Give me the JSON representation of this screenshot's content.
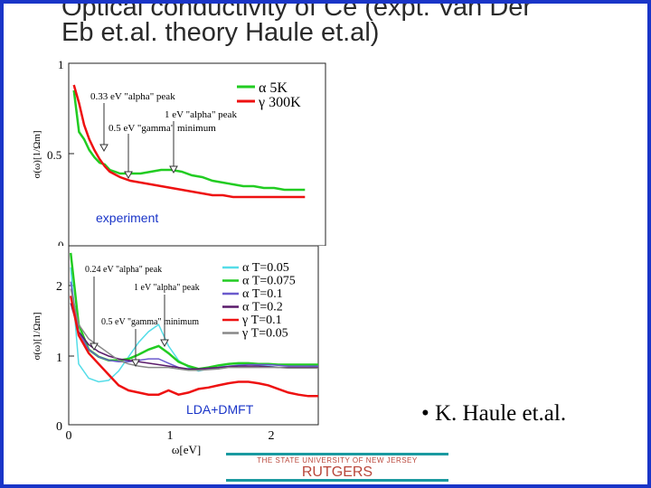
{
  "slide": {
    "title_line1": "Optical conductivity of Ce (expt. Van Der",
    "title_line2": "Eb et.al. theory Haule et.al)",
    "reference": "• K. Haule et.al.",
    "footer_university": "THE STATE UNIVERSITY OF NEW JERSEY",
    "footer_name": "RUTGERS",
    "colors": {
      "frame": "#1a35c8",
      "footer_bar": "#1a9aa0",
      "footer_text": "#b9463a"
    }
  },
  "chart_data": [
    {
      "type": "line",
      "panel_label": "experiment",
      "ylabel": "σ(ω)[1/Ωm]",
      "y_ticks": [
        "1",
        "0.5",
        "0"
      ],
      "xlim": [
        0,
        2.5
      ],
      "ylim": [
        0,
        1
      ],
      "annotations": [
        "0.33 eV \"alpha\" peak",
        "1 eV \"alpha\" peak",
        "0.5 eV \"gamma\" minimum"
      ],
      "legend": {
        "position": "top-right",
        "entries": [
          "α 5K",
          "γ 300K"
        ]
      },
      "series": [
        {
          "name": "α 5K",
          "color": "#22cc22",
          "x": [
            0.05,
            0.1,
            0.15,
            0.2,
            0.25,
            0.3,
            0.35,
            0.4,
            0.5,
            0.6,
            0.7,
            0.8,
            0.9,
            1.0,
            1.1,
            1.2,
            1.3,
            1.4,
            1.5,
            1.6,
            1.7,
            1.8,
            1.9,
            2.0,
            2.1,
            2.2,
            2.3
          ],
          "values": [
            0.85,
            0.62,
            0.58,
            0.52,
            0.48,
            0.45,
            0.44,
            0.41,
            0.39,
            0.39,
            0.39,
            0.4,
            0.41,
            0.41,
            0.4,
            0.38,
            0.37,
            0.35,
            0.34,
            0.33,
            0.32,
            0.32,
            0.31,
            0.31,
            0.3,
            0.3,
            0.3
          ]
        },
        {
          "name": "γ 300K",
          "color": "#ee1111",
          "x": [
            0.05,
            0.1,
            0.15,
            0.2,
            0.25,
            0.3,
            0.35,
            0.4,
            0.5,
            0.6,
            0.7,
            0.8,
            0.9,
            1.0,
            1.1,
            1.2,
            1.3,
            1.4,
            1.5,
            1.6,
            1.7,
            1.8,
            1.9,
            2.0,
            2.1,
            2.2,
            2.3
          ],
          "values": [
            0.88,
            0.78,
            0.66,
            0.58,
            0.52,
            0.47,
            0.43,
            0.4,
            0.37,
            0.35,
            0.34,
            0.33,
            0.32,
            0.31,
            0.3,
            0.29,
            0.28,
            0.27,
            0.27,
            0.26,
            0.26,
            0.26,
            0.26,
            0.26,
            0.26,
            0.26,
            0.26
          ]
        }
      ]
    },
    {
      "type": "line",
      "panel_label": "LDA+DMFT",
      "ylabel": "σ(ω)[1/Ωm]",
      "xlabel": "ω[eV]",
      "y_ticks": [
        "2",
        "1",
        "0"
      ],
      "x_ticks": [
        "0",
        "1",
        "2"
      ],
      "xlim": [
        0,
        2.5
      ],
      "ylim": [
        0,
        2.5
      ],
      "annotations": [
        "0.24 eV \"alpha\" peak",
        "1 eV \"alpha\" peak",
        "0.5 eV \"gamma\" minimum"
      ],
      "legend": {
        "position": "top-right",
        "entries": [
          "α T=0.05",
          "α T=0.075",
          "α T=0.1",
          "α T=0.2",
          "γ T=0.1",
          "γ T=0.05"
        ]
      },
      "series": [
        {
          "name": "α T=0.05",
          "color": "#55dde8",
          "x": [
            0.02,
            0.1,
            0.2,
            0.3,
            0.4,
            0.5,
            0.6,
            0.7,
            0.8,
            0.9,
            1.0,
            1.1,
            1.2,
            1.3,
            1.4,
            1.5,
            1.6,
            1.7,
            1.8,
            1.9,
            2.0,
            2.1,
            2.2,
            2.3,
            2.4,
            2.5
          ],
          "values": [
            2.2,
            0.85,
            0.65,
            0.6,
            0.62,
            0.75,
            0.95,
            1.15,
            1.3,
            1.4,
            1.1,
            0.9,
            0.8,
            0.75,
            0.78,
            0.8,
            0.85,
            0.85,
            0.85,
            0.83,
            0.82,
            0.8,
            0.8,
            0.8,
            0.8,
            0.82
          ]
        },
        {
          "name": "α T=0.075",
          "color": "#22cc22",
          "x": [
            0.02,
            0.1,
            0.2,
            0.3,
            0.4,
            0.5,
            0.6,
            0.7,
            0.8,
            0.9,
            1.0,
            1.1,
            1.2,
            1.3,
            1.4,
            1.5,
            1.6,
            1.7,
            1.8,
            1.9,
            2.0,
            2.1,
            2.2,
            2.3,
            2.4,
            2.5
          ],
          "values": [
            2.4,
            1.4,
            1.05,
            0.95,
            0.9,
            0.9,
            0.92,
            0.98,
            1.05,
            1.1,
            1.0,
            0.88,
            0.82,
            0.78,
            0.8,
            0.83,
            0.85,
            0.86,
            0.86,
            0.85,
            0.85,
            0.84,
            0.84,
            0.84,
            0.84,
            0.84
          ]
        },
        {
          "name": "α T=0.1",
          "color": "#6a5acd",
          "x": [
            0.02,
            0.1,
            0.2,
            0.3,
            0.4,
            0.5,
            0.6,
            0.7,
            0.8,
            0.9,
            1.0,
            1.1,
            1.2,
            1.3,
            1.4,
            1.5,
            1.6,
            1.7,
            1.8,
            1.9,
            2.0,
            2.1,
            2.2,
            2.3,
            2.4,
            2.5
          ],
          "values": [
            2.0,
            1.3,
            1.05,
            0.95,
            0.9,
            0.88,
            0.88,
            0.9,
            0.92,
            0.92,
            0.86,
            0.8,
            0.77,
            0.76,
            0.78,
            0.8,
            0.82,
            0.83,
            0.84,
            0.84,
            0.84,
            0.83,
            0.82,
            0.82,
            0.82,
            0.82
          ]
        },
        {
          "name": "α T=0.2",
          "color": "#5a1a6a",
          "x": [
            0.02,
            0.1,
            0.2,
            0.3,
            0.4,
            0.5,
            0.6,
            0.7,
            0.8,
            0.9,
            1.0,
            1.1,
            1.2,
            1.3,
            1.4,
            1.5,
            1.6,
            1.7,
            1.8,
            1.9,
            2.0,
            2.1,
            2.2,
            2.3,
            2.4,
            2.5
          ],
          "values": [
            1.7,
            1.3,
            1.12,
            1.02,
            0.96,
            0.92,
            0.9,
            0.88,
            0.86,
            0.84,
            0.82,
            0.8,
            0.78,
            0.78,
            0.79,
            0.8,
            0.81,
            0.82,
            0.82,
            0.82,
            0.81,
            0.8,
            0.8,
            0.8,
            0.8,
            0.8
          ]
        },
        {
          "name": "γ T=0.1",
          "color": "#ee1111",
          "x": [
            0.02,
            0.1,
            0.2,
            0.3,
            0.4,
            0.5,
            0.6,
            0.7,
            0.8,
            0.9,
            1.0,
            1.1,
            1.2,
            1.3,
            1.4,
            1.5,
            1.6,
            1.7,
            1.8,
            1.9,
            2.0,
            2.1,
            2.2,
            2.3,
            2.4,
            2.5
          ],
          "values": [
            1.8,
            1.25,
            1.0,
            0.85,
            0.7,
            0.55,
            0.48,
            0.45,
            0.42,
            0.42,
            0.48,
            0.42,
            0.45,
            0.5,
            0.52,
            0.55,
            0.58,
            0.6,
            0.6,
            0.58,
            0.55,
            0.5,
            0.45,
            0.42,
            0.4,
            0.4
          ]
        },
        {
          "name": "γ T=0.05",
          "color": "#888888",
          "x": [
            0.02,
            0.1,
            0.2,
            0.3,
            0.4,
            0.5,
            0.6,
            0.7,
            0.8,
            0.9,
            1.0,
            1.1,
            1.2,
            1.3,
            1.4,
            1.5,
            1.6,
            1.7,
            1.8,
            1.9,
            2.0,
            2.1,
            2.2,
            2.3,
            2.4,
            2.5
          ],
          "values": [
            1.9,
            1.4,
            1.2,
            1.1,
            1.0,
            0.9,
            0.85,
            0.82,
            0.8,
            0.8,
            0.8,
            0.78,
            0.76,
            0.76,
            0.77,
            0.78,
            0.8,
            0.8,
            0.8,
            0.8,
            0.8,
            0.8,
            0.79,
            0.79,
            0.79,
            0.79
          ]
        }
      ]
    }
  ]
}
